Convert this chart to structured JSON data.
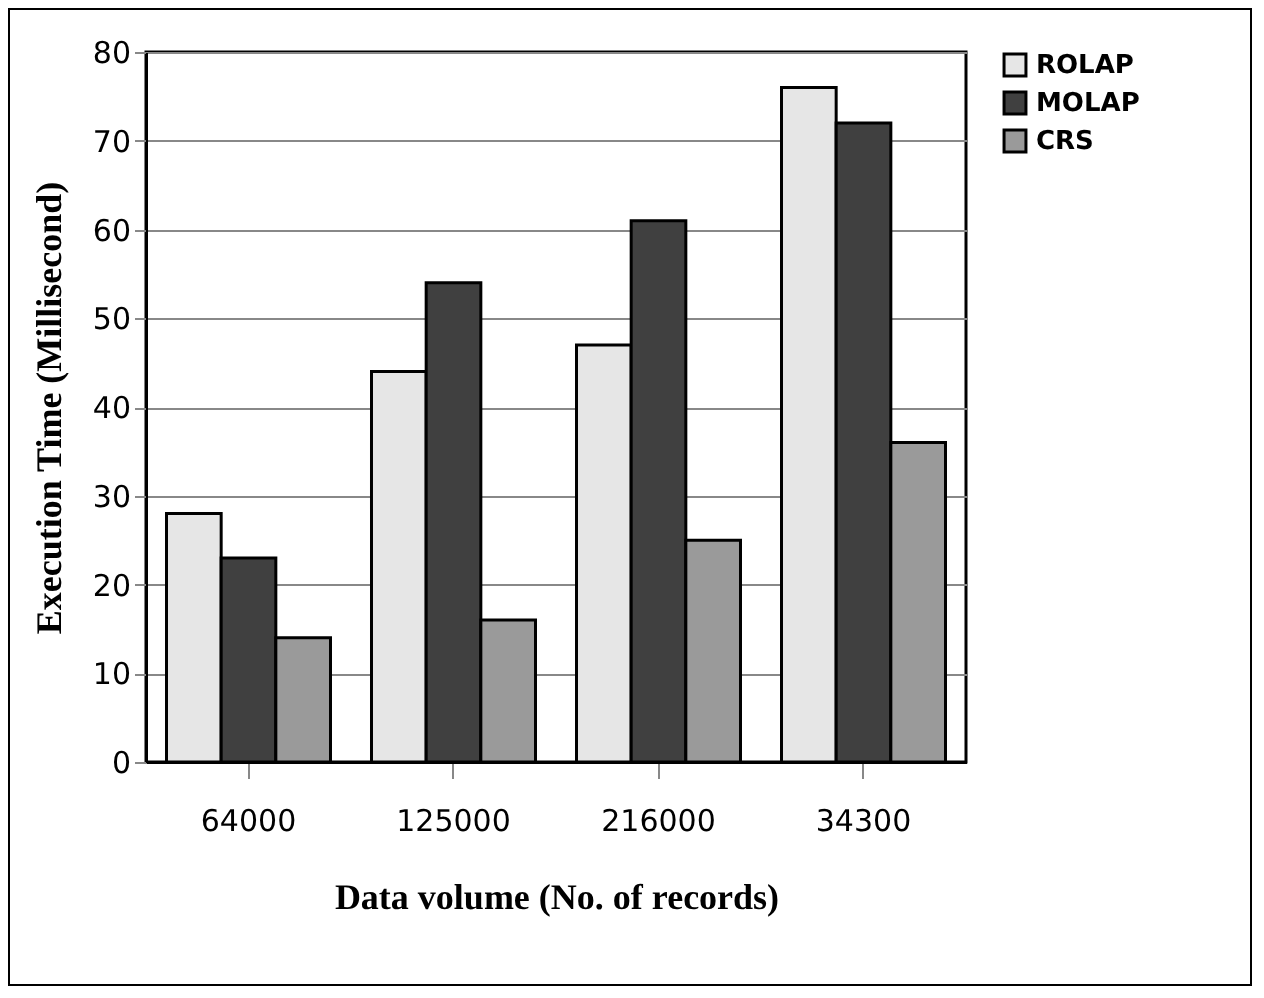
{
  "chart_data": {
    "type": "bar",
    "xlabel": "Data volume (No. of records)",
    "ylabel": "Execution Time (Millisecond)",
    "categories": [
      "64000",
      "125000",
      "216000",
      "34300"
    ],
    "series": [
      {
        "name": "ROLAP",
        "color": "#e6e6e6",
        "values": [
          28,
          44,
          47,
          76
        ]
      },
      {
        "name": "MOLAP",
        "color": "#404040",
        "values": [
          23,
          54,
          61,
          72
        ]
      },
      {
        "name": "CRS",
        "color": "#9a9a9a",
        "values": [
          14,
          16,
          25,
          36
        ]
      }
    ],
    "ylim": [
      0,
      80
    ],
    "yticks": [
      0,
      10,
      20,
      30,
      40,
      50,
      60,
      70,
      80
    ],
    "grid": "y",
    "legend": "right"
  }
}
